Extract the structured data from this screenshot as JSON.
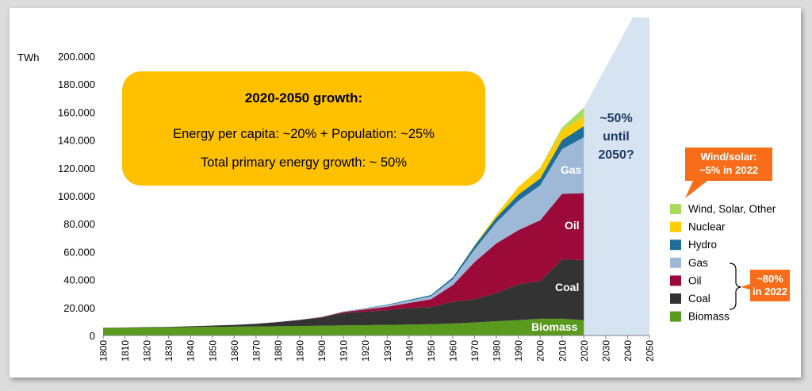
{
  "chart_data": {
    "type": "area",
    "stacked": true,
    "unit": "TWh",
    "ylim": [
      0,
      200000
    ],
    "y_ticks": [
      "0",
      "20.000",
      "40.000",
      "60.000",
      "80.000",
      "100.000",
      "120.000",
      "140.000",
      "160.000",
      "180.000",
      "200.000"
    ],
    "x_range": [
      1800,
      2050
    ],
    "x_ticks": [
      "1800",
      "1810",
      "1820",
      "1830",
      "1840",
      "1850",
      "1860",
      "1870",
      "1880",
      "1890",
      "1900",
      "1910",
      "1920",
      "1930",
      "1940",
      "1950",
      "1960",
      "1970",
      "1980",
      "1990",
      "2000",
      "2010",
      "2020",
      "2030",
      "2040",
      "2050"
    ],
    "x": [
      1800,
      1810,
      1820,
      1830,
      1840,
      1850,
      1860,
      1870,
      1880,
      1890,
      1900,
      1910,
      1920,
      1930,
      1940,
      1950,
      1960,
      1970,
      1980,
      1990,
      2000,
      2010,
      2020
    ],
    "series": [
      {
        "name": "Biomass",
        "color": "#5a9a1c",
        "values": [
          5500,
          5600,
          5700,
          5800,
          6000,
          6200,
          6300,
          6400,
          6600,
          6800,
          7000,
          7200,
          7400,
          7600,
          7800,
          8100,
          8600,
          9300,
          10200,
          11000,
          12000,
          12000,
          11000
        ]
      },
      {
        "name": "Coal",
        "color": "#333333",
        "values": [
          100,
          150,
          250,
          400,
          600,
          900,
          1300,
          2000,
          3000,
          4300,
          5800,
          8800,
          9800,
          10500,
          12000,
          12300,
          15500,
          16800,
          20200,
          25600,
          27000,
          42500,
          43000
        ]
      },
      {
        "name": "Oil",
        "color": "#9b0a38",
        "values": [
          0,
          0,
          0,
          0,
          0,
          0,
          0,
          20,
          50,
          150,
          300,
          800,
          1500,
          2500,
          3500,
          5500,
          12000,
          26500,
          35600,
          38800,
          43500,
          47000,
          48000
        ]
      },
      {
        "name": "Gas",
        "color": "#9eb8d8",
        "values": [
          0,
          0,
          0,
          0,
          0,
          0,
          0,
          0,
          20,
          80,
          200,
          400,
          700,
          1100,
          1600,
          2200,
          4000,
          9000,
          15000,
          21000,
          25000,
          32000,
          40000
        ]
      },
      {
        "name": "Hydro",
        "color": "#1f6e99",
        "values": [
          0,
          0,
          0,
          0,
          0,
          0,
          0,
          0,
          0,
          0,
          30,
          80,
          200,
          400,
          600,
          900,
          1500,
          2800,
          3600,
          4500,
          5000,
          6500,
          8000
        ]
      },
      {
        "name": "Nuclear",
        "color": "#ffcc00",
        "values": [
          0,
          0,
          0,
          0,
          0,
          0,
          0,
          0,
          0,
          0,
          0,
          0,
          0,
          0,
          0,
          0,
          0,
          200,
          2000,
          5500,
          7000,
          7000,
          7200
        ]
      },
      {
        "name": "Wind, Solar, Other",
        "color": "#a8dc5c",
        "values": [
          0,
          0,
          0,
          0,
          0,
          0,
          0,
          0,
          0,
          0,
          0,
          0,
          0,
          0,
          0,
          0,
          0,
          0,
          0,
          0,
          500,
          2000,
          6000
        ]
      }
    ],
    "area_labels": {
      "gas": "Gas",
      "oil": "Oil",
      "coal": "Coal",
      "biomass": "Biomass"
    },
    "projection": {
      "color": "#d6e3f0",
      "label_lines": [
        "~50%",
        "until",
        "2050?"
      ],
      "label_color": "#1f3864",
      "value_2050": 250000
    },
    "growth_box": {
      "title": "2020-2050 growth:",
      "line1": "Energy per capita: ~20%  +  Population: ~25%",
      "line2": "Total primary energy growth:  ~ 50%",
      "color": "#ffc000"
    },
    "callout_wind": {
      "lines": [
        "Wind/solar:",
        "~5% in 2022"
      ],
      "color": "#f76d1a"
    },
    "callout_fossil": {
      "lines": [
        "~80%",
        "in 2022"
      ],
      "color": "#f76d1a"
    },
    "legend": [
      {
        "name": "Wind, Solar, Other",
        "color": "#a8dc5c"
      },
      {
        "name": "Nuclear",
        "color": "#ffcc00"
      },
      {
        "name": "Hydro",
        "color": "#1f6e99"
      },
      {
        "name": "Gas",
        "color": "#9eb8d8"
      },
      {
        "name": "Oil",
        "color": "#9b0a38"
      },
      {
        "name": "Coal",
        "color": "#333333"
      },
      {
        "name": "Biomass",
        "color": "#5a9a1c"
      }
    ]
  }
}
